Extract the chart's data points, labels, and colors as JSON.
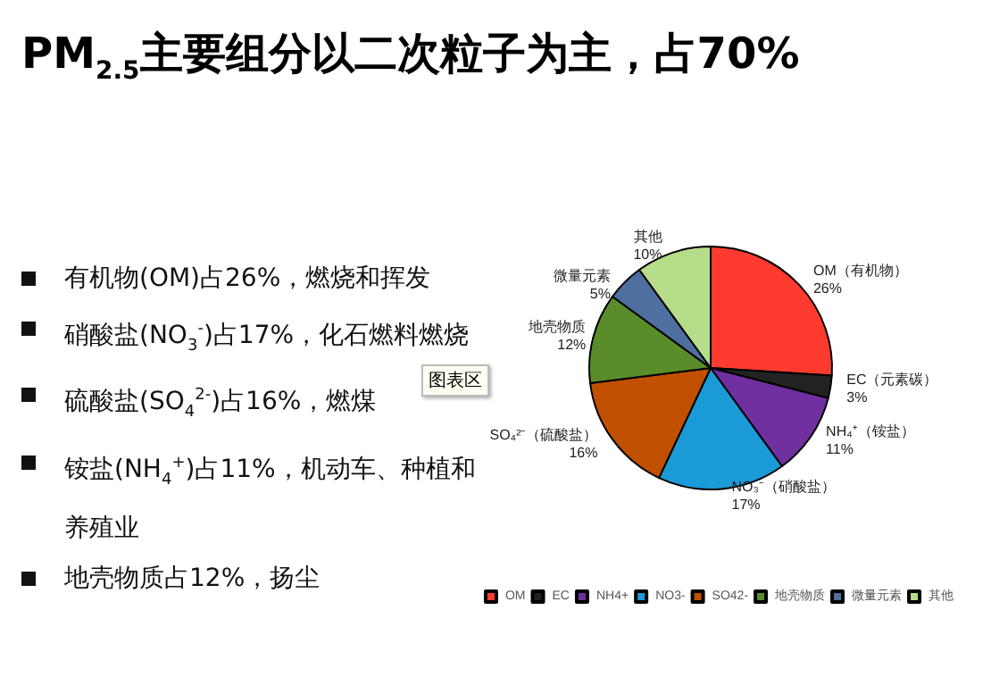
{
  "chart_data": {
    "type": "pie",
    "title": "PM$_{2.5}$主要组分以二次粒子为主，占70%",
    "categories": [
      "OM",
      "EC",
      "NH4+",
      "NO3-",
      "SO42-",
      "地壳物质",
      "微量元素",
      "其他"
    ],
    "values": [
      26,
      3,
      11,
      17,
      16,
      12,
      5,
      10
    ],
    "colors": [
      "#ff3b2f",
      "#222222",
      "#7030a0",
      "#1a9ad6",
      "#c05000",
      "#5b8c2a",
      "#4f6fa0",
      "#b6dd8a"
    ],
    "value_labels": [
      "OM（有机物）\n26%",
      "EC（元素碳）\n3%",
      "NH₄⁺（铵盐）\n11%",
      "NO₃⁻（硝酸盐）\n17%",
      "SO₄²⁻（硫酸盐）\n16%",
      "地壳物质\n12%",
      "微量元素\n5%",
      "其他\n10%"
    ],
    "legend": "bottom",
    "annotations": [
      "有机物(OM)占26%，燃烧和挥发",
      "硝酸盐(NO$_{3}$$^{-}$)占17%，化石燃料燃烧",
      "硫酸盐(SO$_{4}$$^{2-}$)占16%，燃煤",
      "铵盐(NH$_{4}$$^{+}$)占11%，机动车、种植和养殖业",
      "地壳物质占12%，扬尘",
      "图表区"
    ]
  }
}
